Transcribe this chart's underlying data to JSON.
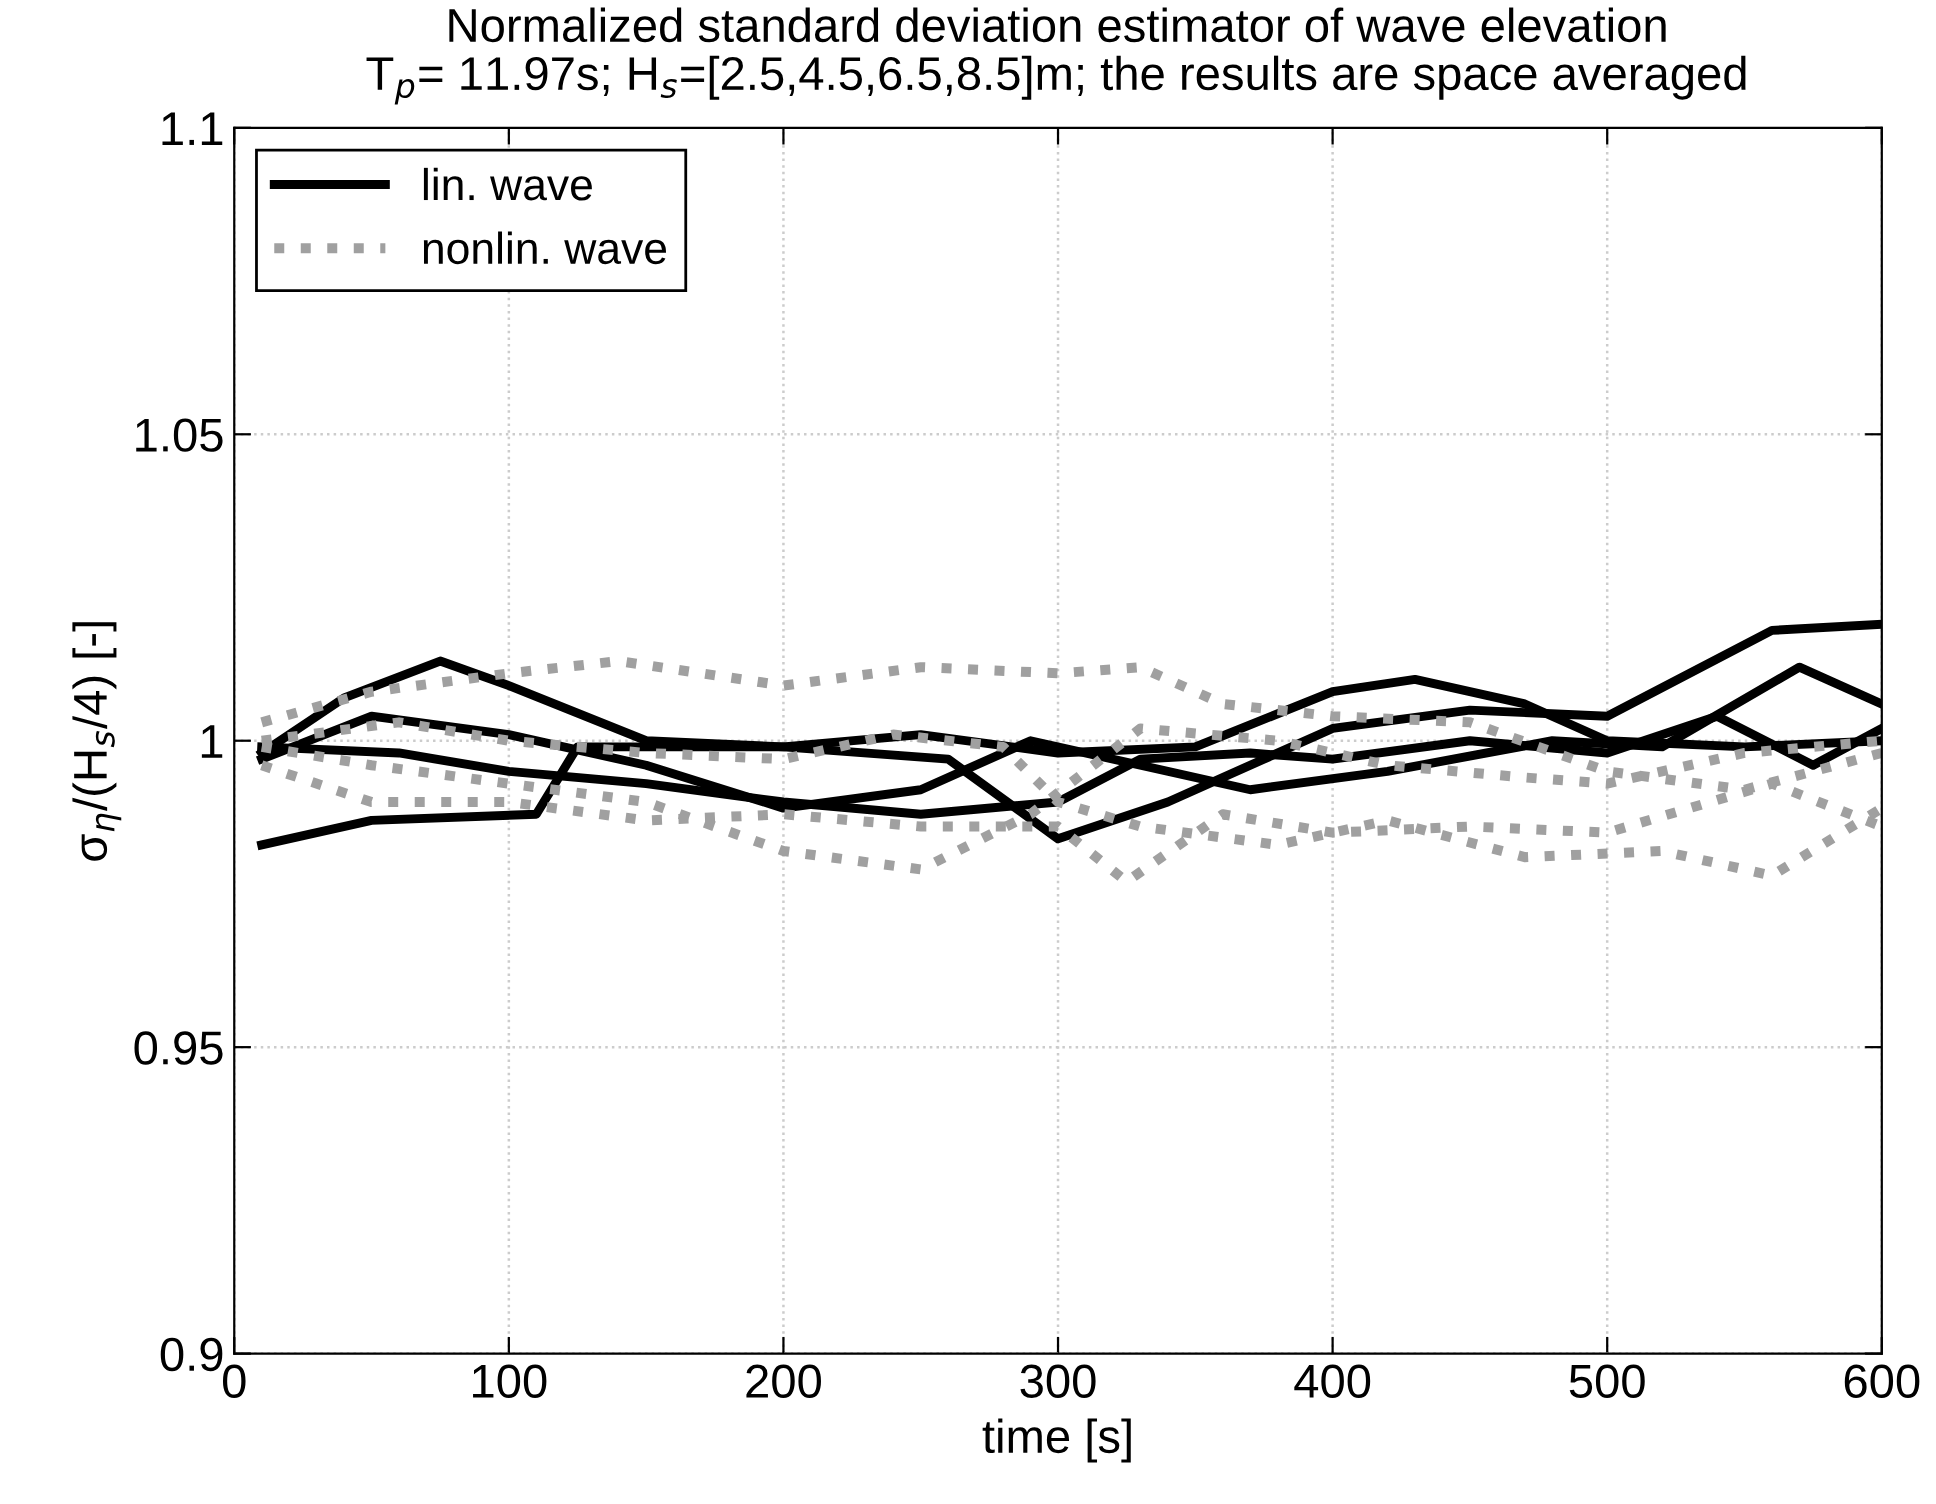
{
  "chart_data": {
    "type": "line",
    "title": "Normalized standard deviation estimator of wave elevation",
    "subtitle": "T$_{p}$= 11.97s; H$_{s}$=[2.5,4.5,6.5,8.5]m; the results are space averaged",
    "xlabel": "time [s]",
    "ylabel": "σ$_{η}$/(H$_{s}$/4) [-]",
    "xlim": [
      0,
      600
    ],
    "xticks": [
      0,
      100,
      200,
      300,
      400,
      500,
      600
    ],
    "ylim": [
      0.9,
      1.1
    ],
    "yticks": [
      0.9,
      0.95,
      1,
      1.05,
      1.1
    ],
    "grid": true,
    "legend": "top left",
    "series": [
      {
        "name": "lin. wave",
        "color": "#000000",
        "line_style": "solid",
        "x": [
          10,
          50,
          110,
          125,
          200,
          260,
          300,
          340,
          400,
          450,
          500,
          560,
          600
        ],
        "values": [
          0.983,
          0.987,
          0.988,
          0.999,
          0.999,
          0.997,
          0.984,
          0.99,
          1.002,
          1.005,
          1.004,
          1.018,
          1.019
        ]
      },
      {
        "color": "#000000",
        "line_style": "solid",
        "x": [
          10,
          40,
          75,
          100,
          150,
          200,
          250,
          300,
          350,
          400,
          430,
          470,
          500,
          550,
          600
        ],
        "values": [
          0.998,
          1.007,
          1.013,
          1.009,
          1.0,
          0.999,
          1.001,
          0.998,
          0.999,
          1.008,
          1.01,
          1.006,
          1.0,
          0.999,
          1.0
        ]
      },
      {
        "color": "#000000",
        "line_style": "solid",
        "x": [
          10,
          50,
          100,
          150,
          200,
          250,
          290,
          330,
          370,
          420,
          480,
          520,
          570,
          600
        ],
        "values": [
          0.997,
          1.004,
          1.001,
          0.996,
          0.989,
          0.992,
          1.0,
          0.996,
          0.992,
          0.995,
          1.0,
          0.999,
          1.012,
          1.006
        ]
      },
      {
        "color": "#000000",
        "line_style": "solid",
        "x": [
          10,
          60,
          100,
          150,
          200,
          250,
          300,
          330,
          370,
          400,
          450,
          500,
          540,
          575,
          600
        ],
        "values": [
          0.999,
          0.998,
          0.995,
          0.993,
          0.99,
          0.988,
          0.99,
          0.997,
          0.998,
          0.997,
          1.0,
          0.998,
          1.004,
          0.996,
          1.002
        ]
      },
      {
        "name": "nonlin. wave",
        "color": "#a0a0a0",
        "line_style": "dotted",
        "x": [
          10,
          50,
          100,
          140,
          200,
          250,
          300,
          330,
          360,
          400,
          450,
          500,
          550,
          600
        ],
        "values": [
          1.003,
          1.008,
          1.011,
          1.013,
          1.009,
          1.012,
          1.011,
          1.012,
          1.006,
          1.004,
          1.003,
          0.995,
          0.992,
          0.998
        ]
      },
      {
        "color": "#a0a0a0",
        "line_style": "dotted",
        "x": [
          10,
          50,
          100,
          150,
          200,
          250,
          300,
          325,
          360,
          400,
          450,
          500,
          560,
          600
        ],
        "values": [
          0.996,
          0.99,
          0.99,
          0.987,
          0.988,
          0.986,
          0.986,
          0.977,
          0.988,
          0.985,
          0.986,
          0.985,
          0.993,
          0.986
        ]
      },
      {
        "color": "#a0a0a0",
        "line_style": "dotted",
        "x": [
          10,
          60,
          100,
          150,
          200,
          240,
          280,
          300,
          330,
          380,
          420,
          470,
          520,
          560,
          600
        ],
        "values": [
          1.0,
          1.003,
          1.0,
          0.998,
          0.997,
          1.001,
          0.999,
          0.99,
          0.986,
          0.983,
          0.987,
          0.981,
          0.982,
          0.978,
          0.989
        ]
      },
      {
        "color": "#a0a0a0",
        "line_style": "dotted",
        "x": [
          10,
          50,
          100,
          150,
          200,
          250,
          290,
          330,
          380,
          420,
          470,
          500,
          550,
          600
        ],
        "values": [
          0.999,
          0.996,
          0.993,
          0.99,
          0.982,
          0.979,
          0.988,
          1.002,
          1.0,
          0.996,
          0.994,
          0.993,
          0.998,
          1.0
        ]
      }
    ]
  }
}
